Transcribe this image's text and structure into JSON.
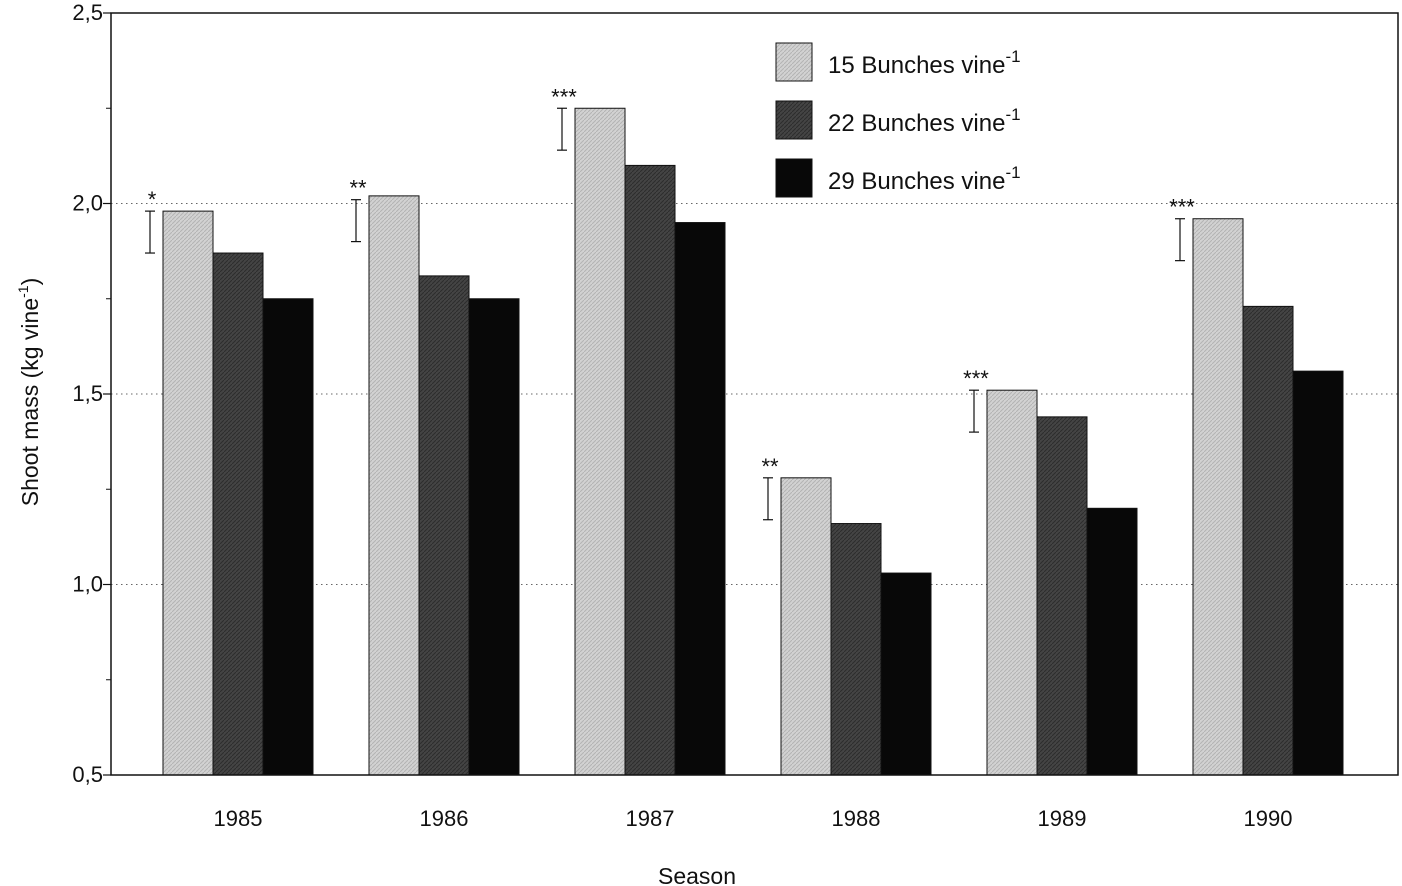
{
  "chart_data": {
    "type": "bar",
    "title": "",
    "xlabel": "Season",
    "ylabel": "Shoot mass (kg vine",
    "ylabel_sup": "-1",
    "ylabel_close": ")",
    "ylim": [
      0.5,
      2.5
    ],
    "yticks": [
      0.5,
      1.0,
      1.5,
      2.0,
      2.5
    ],
    "ytick_labels": [
      "0,5",
      "1,0",
      "1,5",
      "2,0",
      "2,5"
    ],
    "minor_yticks": [
      0.75,
      1.25,
      1.75,
      2.25
    ],
    "gridlines": [
      1.0,
      1.5,
      2.0
    ],
    "grid": "dotted horizontal at major ticks",
    "legend_position": "top-center",
    "categories": [
      "1985",
      "1986",
      "1987",
      "1988",
      "1989",
      "1990"
    ],
    "series": [
      {
        "name": "15 Bunches vine",
        "name_sup": "-1",
        "color": "#c9c9c9",
        "values": [
          1.98,
          2.02,
          2.25,
          1.28,
          1.51,
          1.96
        ]
      },
      {
        "name": "22 Bunches vine",
        "name_sup": "-1",
        "color": "#3c3c3c",
        "values": [
          1.87,
          1.81,
          2.1,
          1.16,
          1.44,
          1.73
        ]
      },
      {
        "name": "29 Bunches vine",
        "name_sup": "-1",
        "color": "#0a0a0a",
        "values": [
          1.75,
          1.75,
          1.95,
          1.03,
          1.2,
          1.56
        ]
      }
    ],
    "error_bars": [
      {
        "low": 1.87,
        "high": 1.98
      },
      {
        "low": 1.9,
        "high": 2.01
      },
      {
        "low": 2.14,
        "high": 2.25
      },
      {
        "low": 1.17,
        "high": 1.28
      },
      {
        "low": 1.4,
        "high": 1.51
      },
      {
        "low": 1.85,
        "high": 1.96
      }
    ],
    "significance": [
      "*",
      "**",
      "***",
      "**",
      "***",
      "***"
    ]
  }
}
